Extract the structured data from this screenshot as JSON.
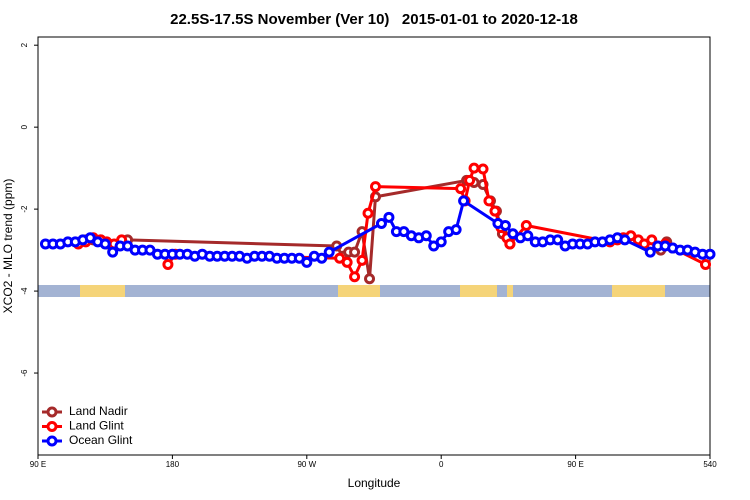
{
  "chart_data": {
    "type": "line",
    "title": "22.5S-17.5S November (Ver 10)   2015-01-01 to 2020-12-18",
    "xlabel": "Longitude",
    "ylabel": "XCO2 - MLO trend (ppm)",
    "xlim": [
      90,
      540
    ],
    "ylim": [
      -8,
      2.2
    ],
    "xticks": [
      {
        "value": 90,
        "label": "90 E"
      },
      180,
      {
        "value": 270,
        "label": "90 W"
      },
      {
        "value": 360,
        "label": "0"
      },
      {
        "value": 450,
        "label": "90 E"
      },
      540
    ],
    "yticks": [
      2,
      0,
      -2,
      -4,
      -6
    ],
    "legend": "bottomleft",
    "series": [
      {
        "name": "Land Nadir",
        "color": "#a52a2a",
        "x": [
          122,
          127,
          132,
          136,
          141,
          146,
          150,
          290,
          294,
          298,
          302,
          307,
          312,
          316,
          377,
          382,
          388,
          393,
          397,
          401,
          406,
          415,
          480,
          507,
          511
        ],
        "values": [
          -2.75,
          -2.75,
          -2.75,
          -2.85,
          -2.9,
          -2.8,
          -2.75,
          -2.9,
          -3.15,
          -3.05,
          -3.05,
          -2.55,
          -3.7,
          -1.7,
          -1.3,
          -1.35,
          -1.4,
          -1.8,
          -2.05,
          -2.6,
          -2.85,
          null,
          null,
          -3.0,
          -2.8
        ]
      },
      {
        "name": "Land Glint",
        "color": "#ff0000",
        "x": [
          117,
          122,
          127,
          132,
          136,
          141,
          146,
          150,
          177,
          182,
          292,
          297,
          302,
          307,
          311,
          316,
          373,
          376,
          379,
          382,
          388,
          392,
          396,
          400,
          404,
          406,
          417,
          473,
          478,
          482,
          487,
          492,
          496,
          501,
          505,
          510,
          515,
          537
        ],
        "values": [
          -2.85,
          -2.8,
          -2.7,
          -2.75,
          -2.8,
          -2.85,
          -2.75,
          null,
          -3.35,
          -3.1,
          -3.2,
          -3.3,
          -3.65,
          -3.25,
          -2.1,
          -1.45,
          -1.5,
          -1.8,
          -1.3,
          -1.0,
          -1.02,
          -1.8,
          -2.05,
          -2.45,
          -2.7,
          -2.85,
          -2.4,
          -2.8,
          -2.75,
          -2.7,
          -2.65,
          -2.75,
          -2.85,
          -2.75,
          -2.9,
          -2.85,
          -2.95,
          -3.35
        ]
      },
      {
        "name": "Ocean Glint",
        "color": "#0000ff",
        "x": [
          95,
          100,
          105,
          110,
          115,
          120,
          125,
          130,
          135,
          140,
          145,
          150,
          155,
          160,
          165,
          170,
          175,
          180,
          185,
          190,
          195,
          200,
          205,
          210,
          215,
          220,
          225,
          230,
          235,
          240,
          245,
          250,
          255,
          260,
          265,
          270,
          275,
          280,
          285,
          320,
          325,
          330,
          335,
          340,
          345,
          350,
          355,
          360,
          365,
          370,
          375,
          398,
          403,
          408,
          413,
          418,
          423,
          428,
          433,
          438,
          443,
          448,
          453,
          458,
          463,
          468,
          473,
          478,
          483,
          500,
          505,
          510,
          515,
          520,
          525,
          530,
          535,
          540
        ],
        "values": [
          -2.85,
          -2.85,
          -2.85,
          -2.8,
          -2.8,
          -2.75,
          -2.7,
          -2.8,
          -2.85,
          -3.05,
          -2.9,
          -2.9,
          -3.0,
          -3.0,
          -3.0,
          -3.1,
          -3.1,
          -3.1,
          -3.1,
          -3.1,
          -3.15,
          -3.1,
          -3.15,
          -3.15,
          -3.15,
          -3.15,
          -3.15,
          -3.2,
          -3.15,
          -3.15,
          -3.15,
          -3.2,
          -3.2,
          -3.2,
          -3.2,
          -3.3,
          -3.15,
          -3.2,
          -3.05,
          -2.35,
          -2.2,
          -2.55,
          -2.55,
          -2.65,
          -2.7,
          -2.65,
          -2.9,
          -2.8,
          -2.55,
          -2.5,
          -1.8,
          -2.35,
          -2.4,
          -2.6,
          -2.7,
          -2.65,
          -2.8,
          -2.8,
          -2.75,
          -2.75,
          -2.9,
          -2.85,
          -2.85,
          -2.85,
          -2.8,
          -2.8,
          -2.75,
          -2.7,
          -2.75,
          -3.05,
          -2.9,
          -2.9,
          -2.95,
          -3.0,
          -3.0,
          -3.05,
          -3.1,
          -3.1
        ]
      }
    ]
  }
}
